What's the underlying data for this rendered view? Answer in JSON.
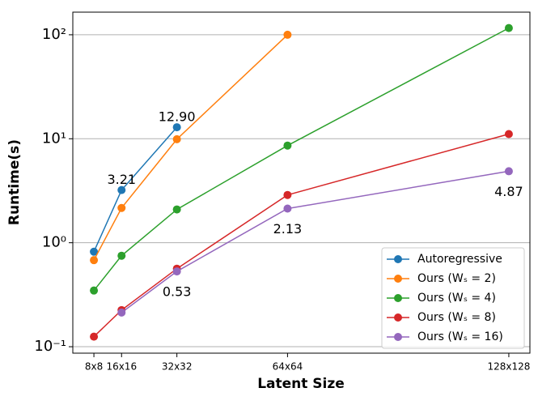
{
  "chart_data": {
    "type": "line",
    "xlabel": "Latent Size",
    "ylabel": "Runtime(s)",
    "x": [
      8,
      16,
      32,
      64,
      128
    ],
    "xlim": [
      1.9,
      134.1
    ],
    "xticks": [
      {
        "value": 8,
        "label": "8x8"
      },
      {
        "value": 16,
        "label": "16x16"
      },
      {
        "value": 32,
        "label": "32x32"
      },
      {
        "value": 64,
        "label": "64x64"
      },
      {
        "value": 128,
        "label": "128x128"
      }
    ],
    "ylim": [
      0.0867,
      165
    ],
    "log_y": true,
    "yticks": [
      {
        "value": 0.1,
        "label": "10⁻¹"
      },
      {
        "value": 1,
        "label": "10⁰"
      },
      {
        "value": 10,
        "label": "10¹"
      },
      {
        "value": 100,
        "label": "10²"
      }
    ],
    "grid": true,
    "legend": "lower right",
    "series": [
      {
        "name": "Autoregressive",
        "color": "#1f77b4",
        "values": [
          0.82,
          3.21,
          12.9,
          null,
          null
        ],
        "value_labels": [
          null,
          "3.21",
          "12.90",
          null,
          null
        ]
      },
      {
        "name": "Ours (Wₛ = 2)",
        "color": "#ff7f0e",
        "values": [
          0.68,
          2.16,
          9.9,
          100,
          null
        ]
      },
      {
        "name": "Ours (Wₛ = 4)",
        "color": "#2ca02c",
        "values": [
          0.347,
          0.75,
          2.09,
          8.6,
          116
        ]
      },
      {
        "name": "Ours (Wₛ = 8)",
        "color": "#d62728",
        "values": [
          0.125,
          0.225,
          0.563,
          2.88,
          11.1
        ]
      },
      {
        "name": "Ours (Wₛ = 16)",
        "color": "#9467bd",
        "values": [
          null,
          0.213,
          0.53,
          2.13,
          4.87
        ],
        "value_labels": [
          null,
          null,
          "0.53",
          "2.13",
          "4.87"
        ]
      }
    ]
  }
}
